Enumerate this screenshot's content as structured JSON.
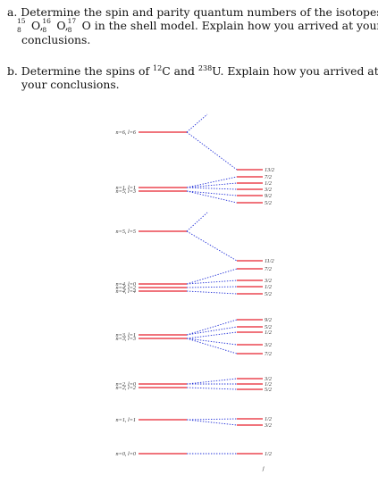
{
  "question_a": {
    "prefix": "a. Determine the spin and parity quantum numbers of the isotopes",
    "isotopes": [
      {
        "mass": "15",
        "z": "8",
        "sym": "O",
        "sep": ", "
      },
      {
        "mass": "16",
        "z": "8",
        "sym": "O",
        "sep": ", "
      },
      {
        "mass": "17",
        "z": "8",
        "sym": "O",
        "sep": ""
      }
    ],
    "suffix": " in the shell model. Explain how you arrived at your",
    "tail": "conclusions."
  },
  "question_b": {
    "p1": "b. Determine the spins of ",
    "m1": "12",
    "s1": "C and ",
    "m2": "238",
    "s2": "U. Explain how you arrived at",
    "tail": "your conclusions."
  },
  "diagram": {
    "left_levels": [
      {
        "label": "n=6, l=6"
      },
      {
        "label": "n=1, l=1"
      },
      {
        "label": "n=5, l=3"
      },
      {
        "label": "n=5, l=5"
      },
      {
        "label": "n=4, l=0"
      },
      {
        "label": "n=4, l=2"
      },
      {
        "label": "n=4, l=4"
      },
      {
        "label": "n=3, l=1"
      },
      {
        "label": "n=3, l=3"
      },
      {
        "label": "n=2, l=0"
      },
      {
        "label": "n=2, l=2"
      },
      {
        "label": "n=1, l=1"
      },
      {
        "label": "n=0, l=0"
      }
    ],
    "right_levels": [
      "13/2",
      "7/2",
      "1/2",
      "3/2",
      "9/2",
      "5/2",
      "11/2",
      "7/2",
      "3/2",
      "1/2",
      "5/2",
      "9/2",
      "5/2",
      "1/2",
      "3/2",
      "7/2",
      "3/2",
      "1/2",
      "5/2",
      "1/2",
      "3/2",
      "1/2"
    ],
    "axis_label": "j",
    "colors": {
      "level": "#e8222d",
      "connector": "#2230d8"
    }
  }
}
